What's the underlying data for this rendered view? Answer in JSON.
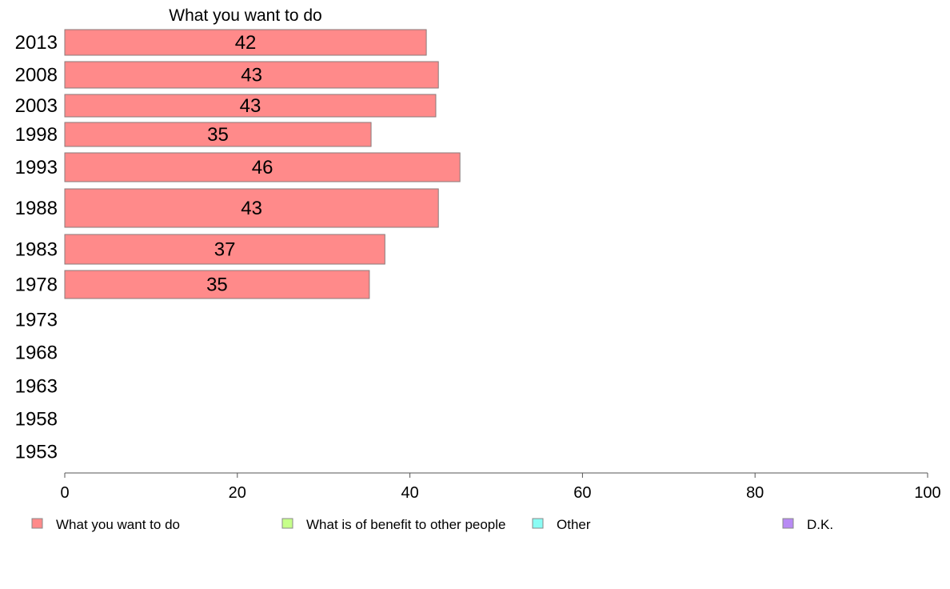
{
  "chart_data": {
    "type": "bar",
    "orientation": "horizontal",
    "title": "What you want to do",
    "categories": [
      "2013",
      "2008",
      "2003",
      "1998",
      "1993",
      "1988",
      "1983",
      "1978",
      "1973",
      "1968",
      "1963",
      "1958",
      "1953"
    ],
    "series": [
      {
        "name": "What you want to do",
        "color": "#ff8a8a",
        "values": [
          42,
          43,
          43,
          35,
          46,
          43,
          37,
          35,
          null,
          null,
          null,
          null,
          null
        ],
        "display_values": [
          41.9,
          43.3,
          43.0,
          35.5,
          45.8,
          43.3,
          37.1,
          35.3,
          null,
          null,
          null,
          null,
          null
        ]
      }
    ],
    "xlim": [
      0,
      100
    ],
    "xticks": [
      0,
      20,
      40,
      60,
      80,
      100
    ],
    "grid": false,
    "legend_position": "bottom",
    "legend": [
      {
        "label": "What you want to do",
        "color": "#ff8a8a"
      },
      {
        "label": "What is of benefit to other people",
        "color": "#c6ff8a"
      },
      {
        "label": "Other",
        "color": "#8afcf4"
      },
      {
        "label": "D.K.",
        "color": "#b88af4"
      }
    ]
  }
}
